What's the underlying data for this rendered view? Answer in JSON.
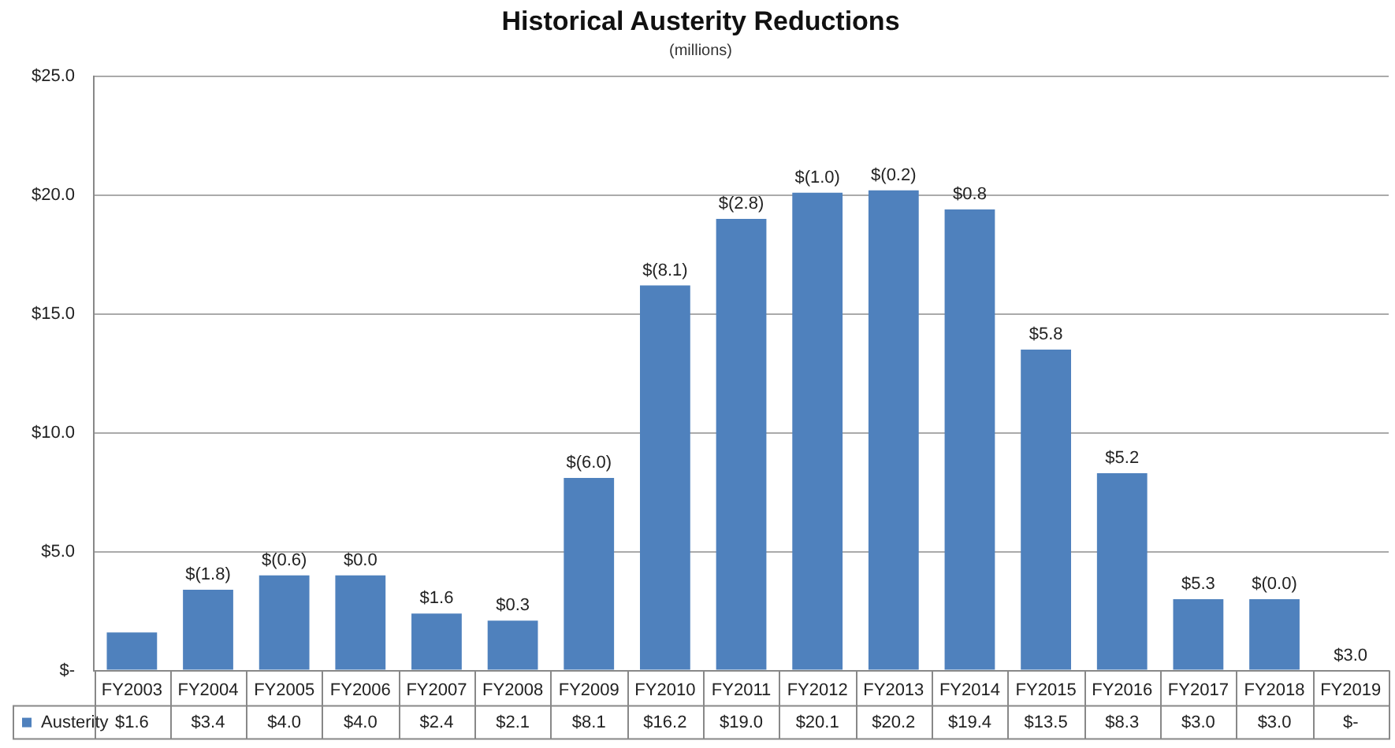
{
  "chart_data": {
    "type": "bar",
    "title": "Historical Austerity Reductions",
    "subtitle": "(millions)",
    "categories": [
      "FY2003",
      "FY2004",
      "FY2005",
      "FY2006",
      "FY2007",
      "FY2008",
      "FY2009",
      "FY2010",
      "FY2011",
      "FY2012",
      "FY2013",
      "FY2014",
      "FY2015",
      "FY2016",
      "FY2017",
      "FY2018",
      "FY2019"
    ],
    "series": [
      {
        "name": "Austerity",
        "color": "#4f81bd",
        "values": [
          1.6,
          3.4,
          4.0,
          4.0,
          2.4,
          2.1,
          8.1,
          16.2,
          19.0,
          20.1,
          20.2,
          19.4,
          13.5,
          8.3,
          3.0,
          3.0,
          0
        ],
        "value_labels": [
          "$1.6",
          "$3.4",
          "$4.0",
          "$4.0",
          "$2.4",
          "$2.1",
          "$8.1",
          "$16.2",
          "$19.0",
          "$20.1",
          "$20.2",
          "$19.4",
          "$13.5",
          "$8.3",
          "$3.0",
          "$3.0",
          "$-"
        ]
      }
    ],
    "ylim": [
      0,
      25
    ],
    "yticks": [
      {
        "value": 0,
        "label": "$-"
      },
      {
        "value": 5,
        "label": "$5.0"
      },
      {
        "value": 10,
        "label": "$10.0"
      },
      {
        "value": 15,
        "label": "$15.0"
      },
      {
        "value": 20,
        "label": "$20.0"
      },
      {
        "value": 25,
        "label": "$25.0"
      }
    ],
    "grid": "y",
    "legend": "bottom",
    "annotations": [
      {
        "text": "$(1.8)",
        "x": "FY2004",
        "y": 3.4
      },
      {
        "text": "$(0.6)",
        "x": "FY2005",
        "y": 4.0
      },
      {
        "text": "$0.0",
        "x": "FY2006",
        "y": 4.0
      },
      {
        "text": "$1.6",
        "x": "FY2007",
        "y": 2.4
      },
      {
        "text": "$0.3",
        "x": "FY2008",
        "y": 2.1
      },
      {
        "text": "$(6.0)",
        "x": "FY2009",
        "y": 8.1
      },
      {
        "text": "$(8.1)",
        "x": "FY2010",
        "y": 16.2
      },
      {
        "text": "$(2.8)",
        "x": "FY2011",
        "y": 19.0
      },
      {
        "text": "$(1.0)",
        "x": "FY2012",
        "y": 20.1
      },
      {
        "text": "$(0.2)",
        "x": "FY2013",
        "y": 20.2
      },
      {
        "text": "$0.8",
        "x": "FY2014",
        "y": 19.4
      },
      {
        "text": "$5.8",
        "x": "FY2015",
        "y": 13.5
      },
      {
        "text": "$5.2",
        "x": "FY2016",
        "y": 8.3
      },
      {
        "text": "$5.3",
        "x": "FY2017",
        "y": 3.0
      },
      {
        "text": "$(0.0)",
        "x": "FY2018",
        "y": 3.0
      },
      {
        "text": "$3.0",
        "x": "FY2019",
        "y": 0
      }
    ]
  }
}
